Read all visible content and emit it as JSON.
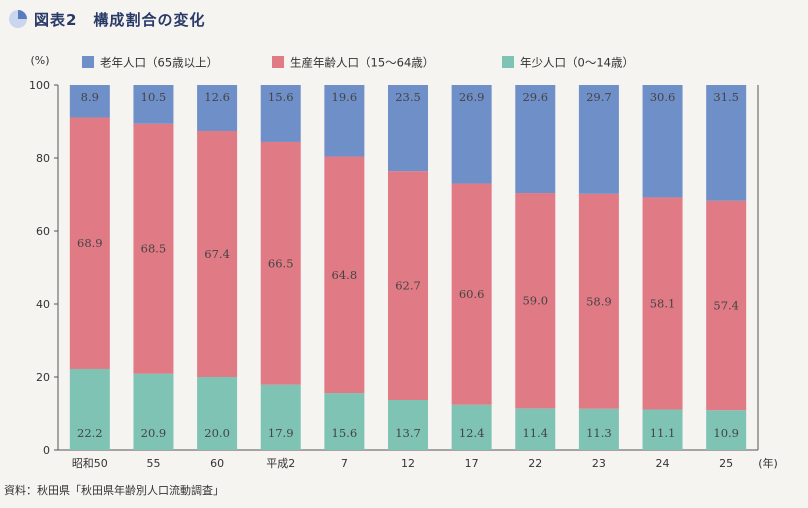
{
  "title": "図表2　構成割合の変化",
  "source": "資料：秋田県「秋田県年齢別人口流動調査」",
  "colors": {
    "elderly": "#6e8fc8",
    "working": "#e07a85",
    "young": "#7fc3b5",
    "title_icon": "#5a7bc0"
  },
  "chart_data": {
    "type": "bar",
    "stacked": true,
    "orientation": "vertical",
    "ylabel": "(%)",
    "xlabel": "(年)",
    "ylim": [
      0,
      100
    ],
    "yticks": [
      0,
      20,
      40,
      60,
      80,
      100
    ],
    "grid": false,
    "legend_position": "top",
    "categories": [
      "昭和50",
      "55",
      "60",
      "平成2",
      "7",
      "12",
      "17",
      "22",
      "23",
      "24",
      "25"
    ],
    "series": [
      {
        "name": "年少人口（0～14歳）",
        "values": [
          22.2,
          20.9,
          20.0,
          17.9,
          15.6,
          13.7,
          12.4,
          11.4,
          11.3,
          11.1,
          10.9
        ]
      },
      {
        "name": "生産年齢人口（15～64歳）",
        "values": [
          68.9,
          68.5,
          67.4,
          66.5,
          64.8,
          62.7,
          60.6,
          59.0,
          58.9,
          58.1,
          57.4
        ]
      },
      {
        "name": "老年人口（65歳以上）",
        "values": [
          8.9,
          10.5,
          12.6,
          15.6,
          19.6,
          23.5,
          26.9,
          29.6,
          29.7,
          30.6,
          31.5
        ]
      }
    ]
  }
}
